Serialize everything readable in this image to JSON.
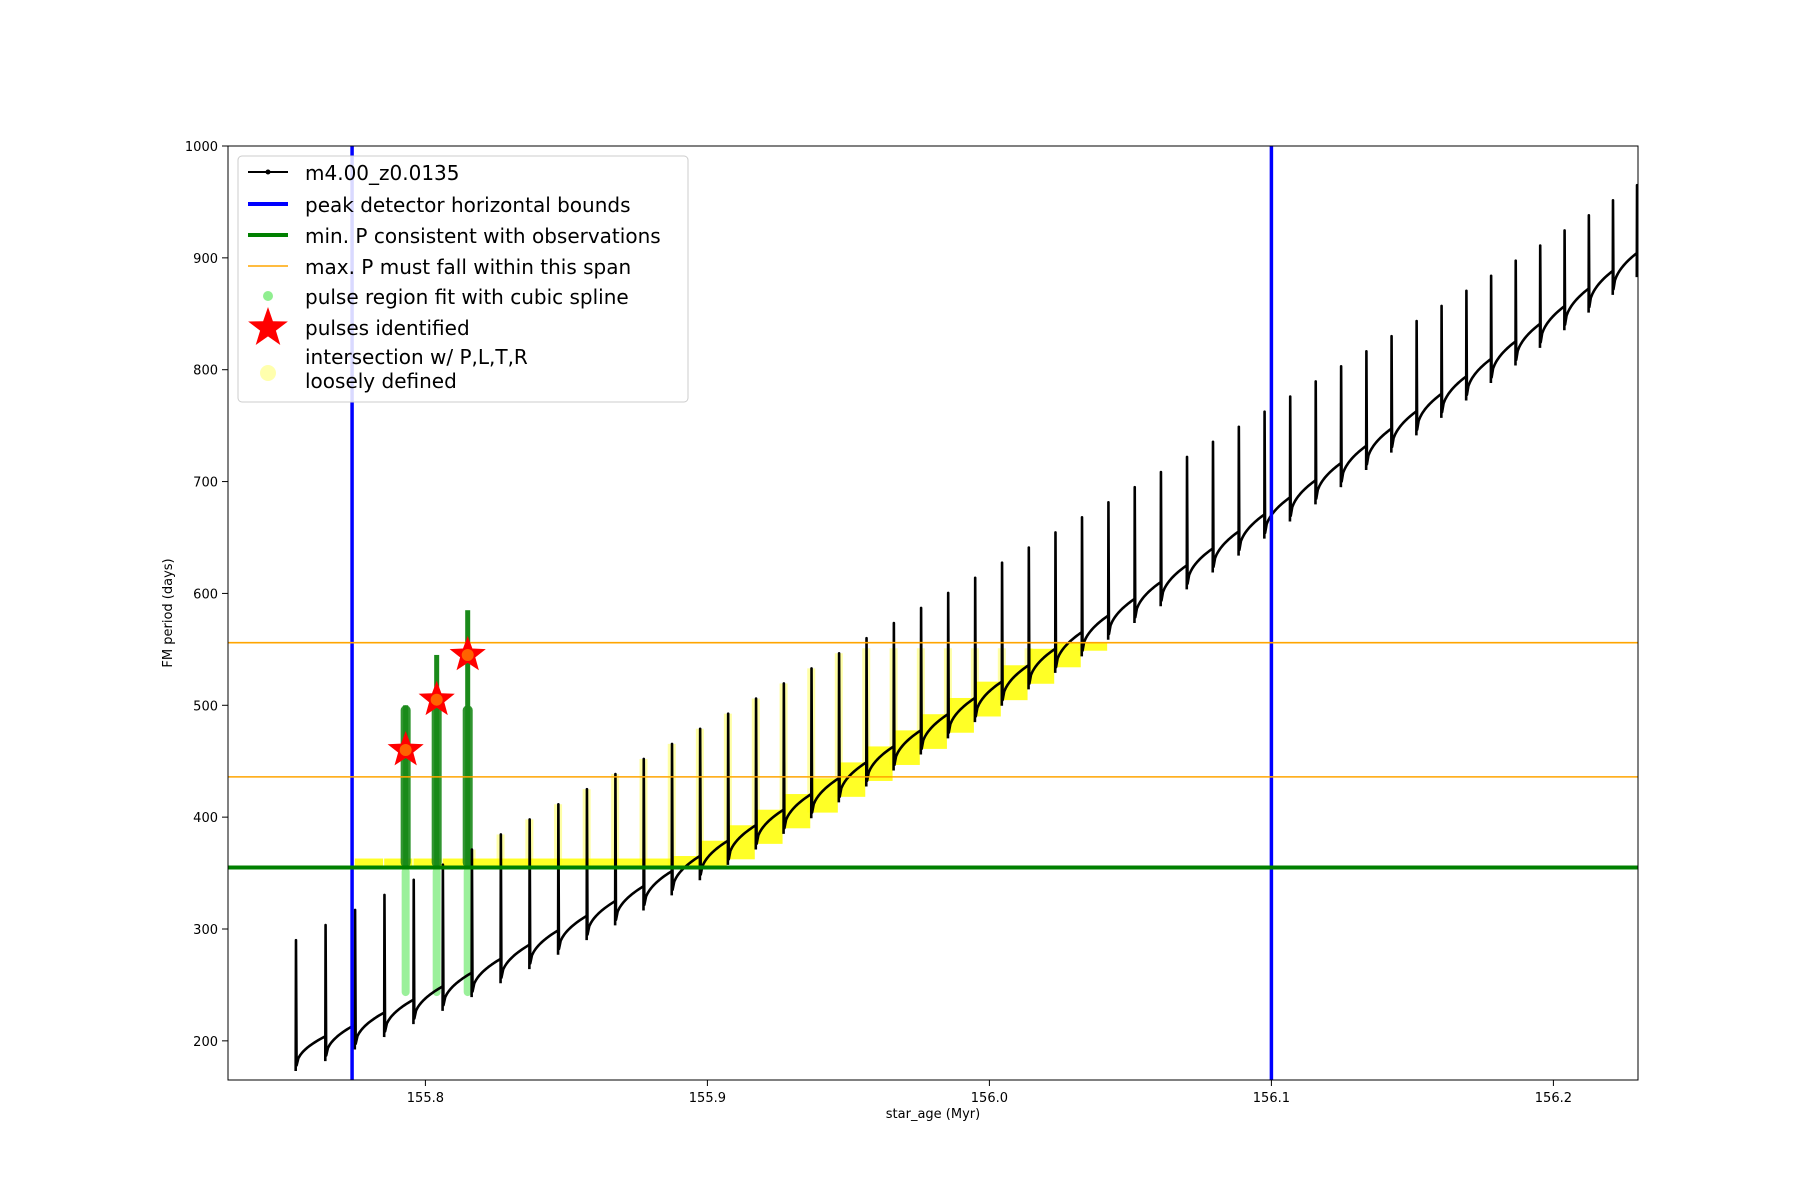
{
  "chart_data": {
    "type": "scatter",
    "title": "",
    "xlabel": "star_age (Myr)",
    "ylabel": "FM period (days)",
    "xlim": [
      155.73,
      156.23
    ],
    "ylim": [
      165,
      1000
    ],
    "xticks": [
      155.8,
      155.9,
      156.0,
      156.1,
      156.2
    ],
    "xtick_labels": [
      "155.8",
      "155.9",
      "156.0",
      "156.1",
      "156.2"
    ],
    "yticks": [
      200,
      300,
      400,
      500,
      600,
      700,
      800,
      900,
      1000
    ],
    "ytick_labels": [
      "200",
      "300",
      "400",
      "500",
      "600",
      "700",
      "800",
      "900",
      "1000"
    ],
    "grid": false,
    "legend_position": "top-left",
    "legend": [
      {
        "label": "m4.00_z0.0135",
        "kind": "line-marker",
        "color": "#000000"
      },
      {
        "label": "peak detector horizontal bounds",
        "kind": "line",
        "color": "#0000ff"
      },
      {
        "label": "min. P consistent with observations",
        "kind": "line",
        "color": "#008000"
      },
      {
        "label": "max. P must fall within this span",
        "kind": "thin-line",
        "color": "#ffa500"
      },
      {
        "label": "pulse region fit with cubic spline",
        "kind": "dot",
        "color": "#90ee90"
      },
      {
        "label": "pulses identified",
        "kind": "star",
        "color": "#ff0000"
      },
      {
        "label": "intersection w/ P,L,T,R",
        "label2": "loosely defined",
        "kind": "big-dot",
        "color": "#ffff99"
      }
    ],
    "reference_lines": {
      "vertical_blue_x": [
        155.774,
        156.1
      ],
      "min_P_green_y": 355,
      "max_P_span_orange_y": [
        436,
        556
      ]
    },
    "pulses_identified": [
      {
        "x": 155.793,
        "y": 460
      },
      {
        "x": 155.804,
        "y": 505
      },
      {
        "x": 155.815,
        "y": 545
      }
    ],
    "pulse_cycles": {
      "count": 58,
      "start_age": 155.754,
      "spacing_start": 0.0105,
      "spacing_end": 0.0082,
      "baseline_start": 178,
      "baseline_end": 1000,
      "baseline_curve": 1.12,
      "peak_start": 290,
      "peak_growth": [
        300,
        1000
      ]
    },
    "model_track_name": "m4.00_z0.0135"
  },
  "colors": {
    "track": "#000000",
    "bounds": "#0000ff",
    "min_p": "#008000",
    "span": "#ffa500",
    "spline_light": "#90ee90",
    "spline_dark": "#1a8a1a",
    "star": "#ff0000",
    "intersection": "#ffff00"
  }
}
